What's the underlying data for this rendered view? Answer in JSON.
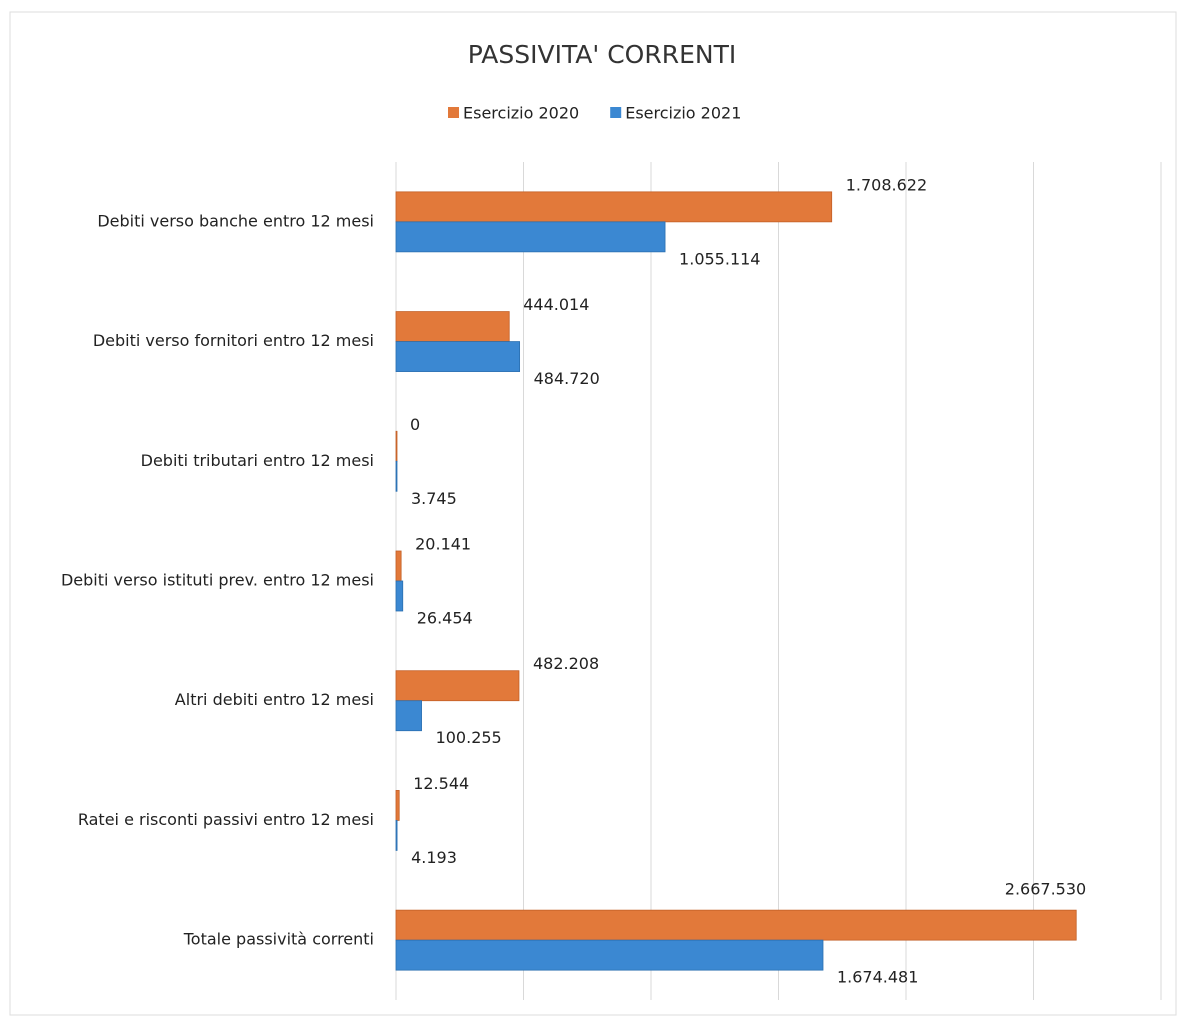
{
  "chart_data": {
    "type": "hbar",
    "title": "PASSIVITA' CORRENTI",
    "categories": [
      "Debiti verso banche entro 12 mesi",
      "Debiti verso fornitori entro 12 mesi",
      "Debiti tributari entro 12 mesi",
      "Debiti verso istituti prev. entro 12 mesi",
      "Altri debiti entro 12 mesi",
      "Ratei e risconti passivi entro 12 mesi",
      "Totale passività correnti"
    ],
    "series": [
      {
        "name": "Esercizio 2020",
        "color": "#e2793a",
        "values": [
          1708622,
          444014,
          0,
          20141,
          482208,
          12544,
          2667530
        ],
        "value_labels": [
          "1.708.622",
          "444.014",
          "0",
          "20.141",
          "482.208",
          "12.544",
          "2.667.530"
        ]
      },
      {
        "name": "Esercizio 2021",
        "color": "#3b88d2",
        "values": [
          1055114,
          484720,
          3745,
          26454,
          100255,
          4193,
          1674481
        ],
        "value_labels": [
          "1.055.114",
          "484.720",
          "3.745",
          "26.454",
          "100.255",
          "4.193",
          "1.674.481"
        ]
      }
    ],
    "xlim": [
      0,
      3000000
    ],
    "xticks": [
      0,
      500000,
      1000000,
      1500000,
      2000000,
      2500000,
      3000000
    ],
    "grid": true,
    "legend": "top"
  }
}
